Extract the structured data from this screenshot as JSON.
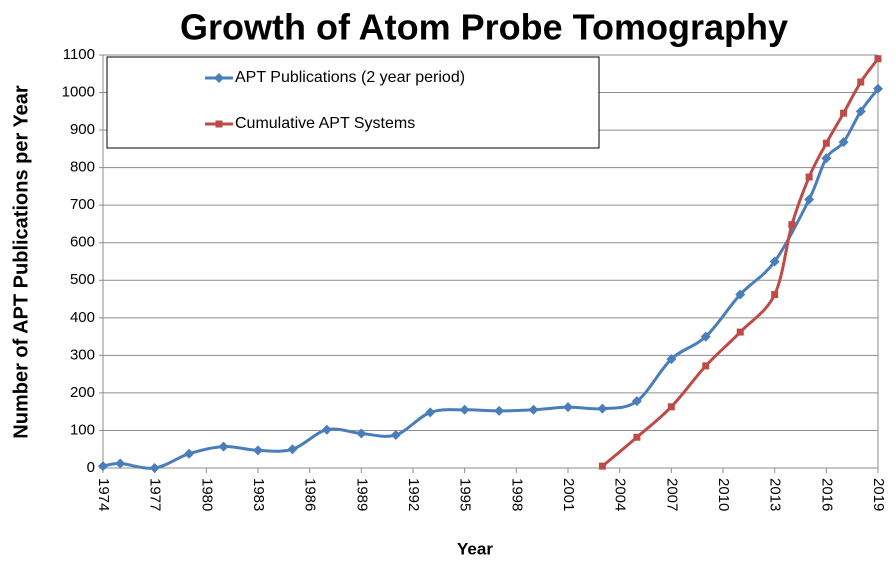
{
  "chart_data": {
    "type": "line",
    "title": "Growth of Atom Probe Tomography",
    "x_label": "Year",
    "y_label": "Number of APT Publications per Year",
    "xlim": [
      1974,
      2019
    ],
    "xticks": [
      1974,
      1977,
      1980,
      1983,
      1986,
      1989,
      1992,
      1995,
      1998,
      2001,
      2004,
      2007,
      2010,
      2013,
      2016,
      2019
    ],
    "ylim": [
      0,
      1100
    ],
    "yticks": [
      0,
      100,
      200,
      300,
      400,
      500,
      600,
      700,
      800,
      900,
      1000,
      1100
    ],
    "grid": true,
    "legend": "top-left",
    "series": [
      {
        "name": "APT Publications (2 year period)",
        "color": "#4a7ebb",
        "marker": "diamond",
        "x": [
          1974,
          1975,
          1977,
          1979,
          1981,
          1983,
          1985,
          1987,
          1989,
          1991,
          1993,
          1995,
          1997,
          1999,
          2001,
          2003,
          2005,
          2007,
          2009,
          2011,
          2013,
          2015,
          2016,
          2017,
          2018,
          2019
        ],
        "values": [
          5,
          12,
          0,
          38,
          57,
          47,
          50,
          102,
          92,
          88,
          148,
          155,
          152,
          155,
          162,
          158,
          178,
          290,
          350,
          462,
          550,
          715,
          825,
          868,
          950,
          1010
        ]
      },
      {
        "name": "Cumulative APT Systems",
        "color": "#be4b48",
        "marker": "square",
        "x": [
          2003,
          2005,
          2007,
          2009,
          2011,
          2013,
          2014,
          2015,
          2016,
          2017,
          2018,
          2019
        ],
        "values": [
          5,
          82,
          163,
          272,
          362,
          462,
          648,
          775,
          865,
          945,
          1028,
          1090
        ]
      }
    ]
  }
}
